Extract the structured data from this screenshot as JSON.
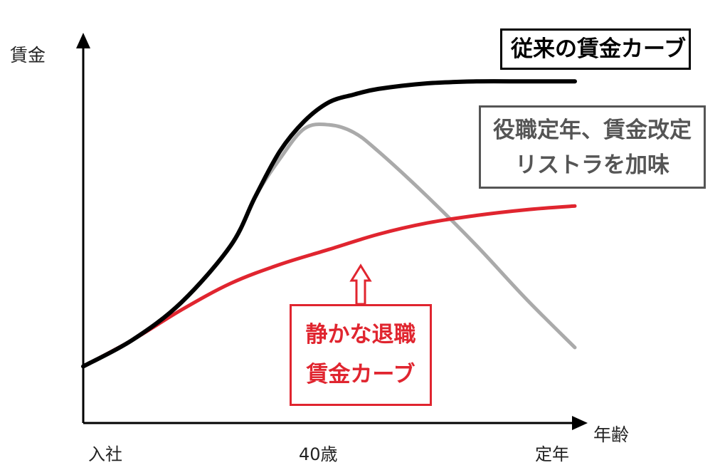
{
  "chart_data": {
    "type": "line",
    "title": "",
    "xlabel": "年齢",
    "ylabel": "賃金",
    "x_ticks": [
      "入社",
      "40歳",
      "定年"
    ],
    "xlim": [
      0,
      1
    ],
    "ylim": [
      0,
      1
    ],
    "grid": false,
    "series": [
      {
        "name": "従来の賃金カーブ",
        "color": "#000000",
        "x": [
          0.0,
          0.1,
          0.2,
          0.3,
          0.35,
          0.4,
          0.45,
          0.5,
          0.55,
          0.6,
          0.7,
          0.8,
          0.9,
          1.0
        ],
        "y": [
          0.15,
          0.22,
          0.32,
          0.47,
          0.6,
          0.72,
          0.8,
          0.85,
          0.87,
          0.885,
          0.9,
          0.905,
          0.905,
          0.905
        ]
      },
      {
        "name": "役職定年、賃金改定 リストラを加味",
        "color": "#aaaaaa",
        "x": [
          0.0,
          0.1,
          0.2,
          0.3,
          0.35,
          0.4,
          0.45,
          0.5,
          0.55,
          0.6,
          0.7,
          0.8,
          0.9,
          1.0
        ],
        "y": [
          0.15,
          0.22,
          0.32,
          0.47,
          0.6,
          0.7,
          0.78,
          0.79,
          0.77,
          0.72,
          0.6,
          0.47,
          0.33,
          0.2
        ]
      },
      {
        "name": "静かな退職 賃金カーブ",
        "color": "#e0252f",
        "x": [
          0.0,
          0.1,
          0.2,
          0.3,
          0.4,
          0.5,
          0.6,
          0.7,
          0.8,
          0.9,
          1.0
        ],
        "y": [
          0.15,
          0.22,
          0.3,
          0.37,
          0.42,
          0.46,
          0.5,
          0.53,
          0.55,
          0.565,
          0.575
        ]
      }
    ],
    "annotations": {
      "traditional": [
        "従来の賃金カーブ"
      ],
      "adjusted": [
        "役職定年、賃金改定",
        "リストラを加味"
      ],
      "quiet": [
        "静かな退職",
        "賃金カーブ"
      ]
    }
  }
}
